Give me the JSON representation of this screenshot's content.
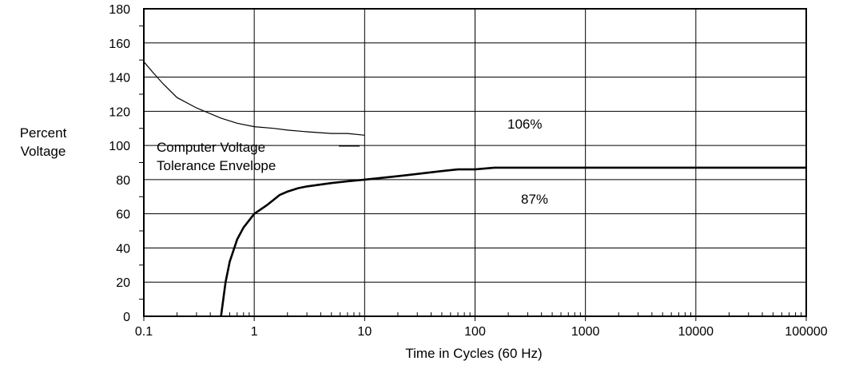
{
  "chart_data": {
    "type": "line",
    "title": "",
    "xlabel": "Time in Cycles (60 Hz)",
    "ylabel_lines": [
      "Percent",
      "Voltage"
    ],
    "x_scale": "log",
    "xlim": [
      0.1,
      100000
    ],
    "ylim": [
      0,
      180
    ],
    "x_ticks": [
      0.1,
      1,
      10,
      100,
      1000,
      10000,
      100000
    ],
    "x_tick_labels": [
      "0.1",
      "1",
      "10",
      "100",
      "1000",
      "10000",
      "100000"
    ],
    "y_ticks": [
      0,
      20,
      40,
      60,
      80,
      100,
      120,
      140,
      160,
      180
    ],
    "y_tick_labels": [
      "0",
      "20",
      "40",
      "60",
      "80",
      "100",
      "120",
      "140",
      "160",
      "180"
    ],
    "grid": true,
    "line_color": "#000000",
    "series": [
      {
        "role": "upper-limit",
        "x": [
          0.1,
          0.12,
          0.15,
          0.2,
          0.3,
          0.5,
          0.7,
          1,
          1.5,
          2,
          3,
          5,
          7,
          10
        ],
        "y": [
          149,
          143,
          136,
          128,
          122,
          116,
          113,
          111,
          110,
          109,
          108,
          107,
          107,
          106
        ]
      },
      {
        "role": "lower-limit",
        "x": [
          0.5,
          0.55,
          0.6,
          0.7,
          0.8,
          1,
          1.3,
          1.7,
          2,
          2.5,
          3,
          5,
          7,
          10,
          20,
          50,
          70,
          100,
          150,
          180,
          1000,
          10000,
          100000
        ],
        "y": [
          0,
          20,
          32,
          45,
          52,
          60,
          65,
          71,
          73,
          75,
          76,
          78,
          79,
          80,
          82,
          85,
          86,
          86,
          87,
          87,
          87,
          87,
          87
        ]
      }
    ],
    "annotations": {
      "upper_percent": "106%",
      "lower_percent": "87%",
      "envelope_line1": "Computer Voltage",
      "envelope_line2": "Tolerance Envelope"
    }
  }
}
